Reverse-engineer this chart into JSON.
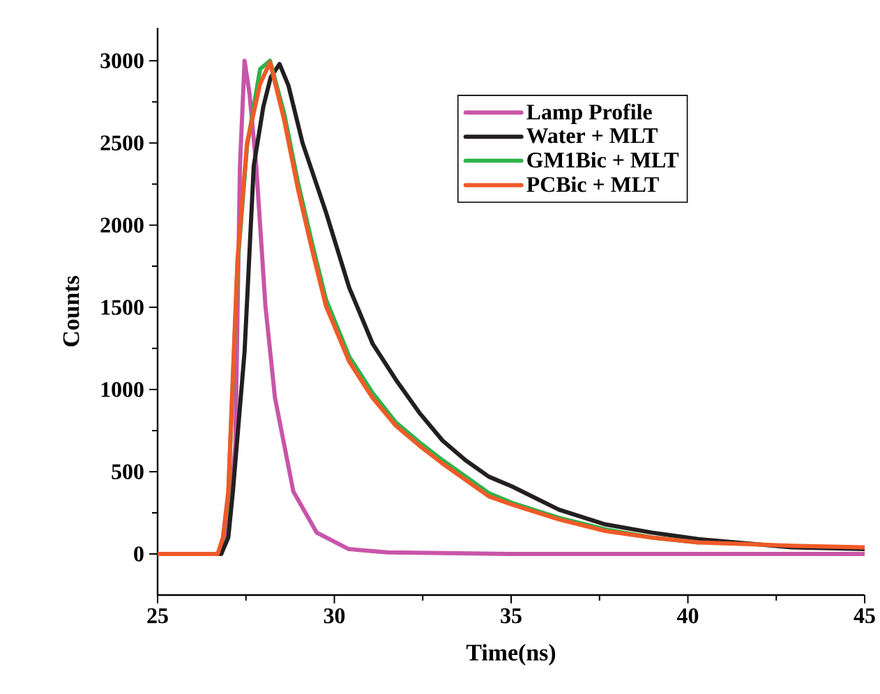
{
  "chart_data": {
    "type": "line",
    "xlabel": "Time(ns)",
    "ylabel": "Counts",
    "legend": "top right",
    "xlim": [
      25,
      45
    ],
    "ylim": [
      -250,
      3200
    ],
    "xticks": [
      25,
      {
        "value": 27.5,
        "label": null
      },
      30,
      {
        "value": 32.5,
        "label": null
      },
      35,
      {
        "value": 37.5,
        "label": null
      },
      40,
      {
        "value": 42.5,
        "label": null
      },
      45
    ],
    "yticks": [
      0,
      {
        "value": 250,
        "label": null
      },
      500,
      {
        "value": 750,
        "label": null
      },
      1000,
      {
        "value": 1250,
        "label": null
      },
      1500,
      {
        "value": 1750,
        "label": null
      },
      2000,
      {
        "value": 2250,
        "label": null
      },
      2500,
      {
        "value": 2750,
        "label": null
      },
      3000
    ],
    "series": [
      {
        "name": "Lamp Profile",
        "color": "#c855a8",
        "x": [
          25,
          26.8,
          26.95,
          27.1,
          27.2,
          27.33,
          27.46,
          27.6,
          27.79,
          28.05,
          28.32,
          28.84,
          29.5,
          30.4,
          31.5,
          35,
          40,
          45
        ],
        "values": [
          0,
          0,
          100,
          400,
          660,
          2360,
          3000,
          2800,
          2360,
          1510,
          950,
          380,
          130,
          30,
          10,
          0,
          0,
          0
        ]
      },
      {
        "name": "Water + MLT",
        "color": "#231f20",
        "x": [
          25,
          26.8,
          27.0,
          27.13,
          27.46,
          27.72,
          27.99,
          28.2,
          28.45,
          28.7,
          29.1,
          29.76,
          30.42,
          31.08,
          31.74,
          32.4,
          33.06,
          33.71,
          34.37,
          35.03,
          36.35,
          37.66,
          38.98,
          40.3,
          41.6,
          42.93,
          45
        ],
        "values": [
          0,
          0,
          100,
          380,
          1230,
          2360,
          2720,
          2900,
          2980,
          2850,
          2500,
          2080,
          1620,
          1280,
          1060,
          860,
          690,
          570,
          470,
          410,
          270,
          180,
          130,
          90,
          null,
          40,
          30
        ]
      },
      {
        "name": "GM1Bic + MLT",
        "color": "#2db34a",
        "x": [
          26.85,
          27.0,
          27.26,
          27.53,
          27.9,
          28.18,
          28.58,
          28.97,
          29.37,
          29.76,
          30.42,
          31.08,
          31.74,
          32.4,
          33.06,
          34.37,
          35.03,
          36.35,
          37.66,
          38.98,
          40.3
        ],
        "values": [
          90,
          360,
          1750,
          2480,
          2950,
          3000,
          2680,
          2260,
          1890,
          1550,
          1200,
          980,
          800,
          680,
          570,
          370,
          310,
          220,
          150,
          100,
          70
        ]
      },
      {
        "name": "PCBic + MLT",
        "color": "#f05a28",
        "x": [
          25,
          26.7,
          26.85,
          27.0,
          27.26,
          27.53,
          27.9,
          28.18,
          28.58,
          28.97,
          29.37,
          29.76,
          30.42,
          31.08,
          31.74,
          32.4,
          33.06,
          34.37,
          35.03,
          36.35,
          37.66,
          38.98,
          40.3,
          41.6,
          42.93,
          45
        ],
        "values": [
          0,
          0,
          100,
          380,
          1790,
          2500,
          2860,
          2990,
          2640,
          2220,
          1850,
          1510,
          1170,
          950,
          780,
          660,
          550,
          350,
          300,
          210,
          140,
          100,
          70,
          60,
          50,
          40
        ]
      }
    ]
  }
}
